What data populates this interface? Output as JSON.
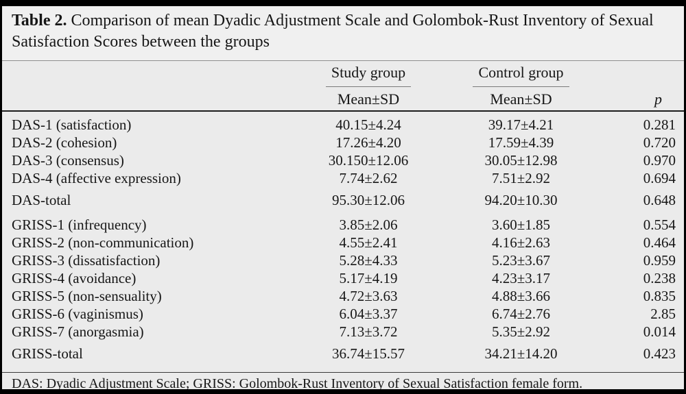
{
  "title": {
    "label": "Table 2.",
    "text": " Comparison of mean Dyadic Adjustment Scale and Golombok-Rust Inventory of Sexual Satisfaction Scores between the groups"
  },
  "header": {
    "study_group": "Study group",
    "control_group": "Control group",
    "study_mean_sd": "Mean±SD",
    "control_mean_sd": "Mean±SD",
    "p": "p"
  },
  "table": {
    "columns": [
      "",
      "Study group Mean±SD",
      "Control group Mean±SD",
      "p"
    ],
    "sections": [
      {
        "name": "das-subscales",
        "rows": [
          {
            "label": "DAS-1 (satisfaction)",
            "study": "40.15±4.24",
            "control": "39.17±4.21",
            "p": "0.281"
          },
          {
            "label": "DAS-2 (cohesion)",
            "study": "17.26±4.20",
            "control": "17.59±4.39",
            "p": "0.720"
          },
          {
            "label": "DAS-3 (consensus)",
            "study": "30.150±12.06",
            "control": "30.05±12.98",
            "p": "0.970"
          },
          {
            "label": "DAS-4 (affective expression)",
            "study": "7.74±2.62",
            "control": "7.51±2.92",
            "p": "0.694"
          }
        ]
      },
      {
        "name": "das-total",
        "rows": [
          {
            "label": "DAS-total",
            "study": "95.30±12.06",
            "control": "94.20±10.30",
            "p": "0.648"
          }
        ]
      },
      {
        "name": "griss-subscales",
        "rows": [
          {
            "label": "GRISS-1 (infrequency)",
            "study": "3.85±2.06",
            "control": "3.60±1.85",
            "p": "0.554"
          },
          {
            "label": "GRISS-2 (non-communication)",
            "study": "4.55±2.41",
            "control": "4.16±2.63",
            "p": "0.464"
          },
          {
            "label": "GRISS-3 (dissatisfaction)",
            "study": "5.28±4.33",
            "control": "5.23±3.67",
            "p": "0.959"
          },
          {
            "label": "GRISS-4 (avoidance)",
            "study": "5.17±4.19",
            "control": "4.23±3.17",
            "p": "0.238"
          },
          {
            "label": "GRISS-5 (non-sensuality)",
            "study": "4.72±3.63",
            "control": "4.88±3.66",
            "p": "0.835"
          },
          {
            "label": "GRISS-6 (vaginismus)",
            "study": "6.04±3.37",
            "control": "6.74±2.76",
            "p": "2.85"
          },
          {
            "label": "GRISS-7 (anorgasmia)",
            "study": "7.13±3.72",
            "control": "5.35±2.92",
            "p": "0.014"
          }
        ]
      },
      {
        "name": "griss-total",
        "rows": [
          {
            "label": "GRISS-total",
            "study": "36.74±15.57",
            "control": "34.21±14.20",
            "p": "0.423"
          }
        ]
      }
    ]
  },
  "footnote": "DAS: Dyadic Adjustment Scale; GRISS: Golombok-Rust Inventory of Sexual Satisfaction female form.",
  "colors": {
    "background": "#ebebeb",
    "title_background": "#f0f0f0",
    "border": "#000000",
    "rule_gray": "#8e8e8e",
    "rule_dark": "#1c1c1c",
    "text": "#161616"
  }
}
